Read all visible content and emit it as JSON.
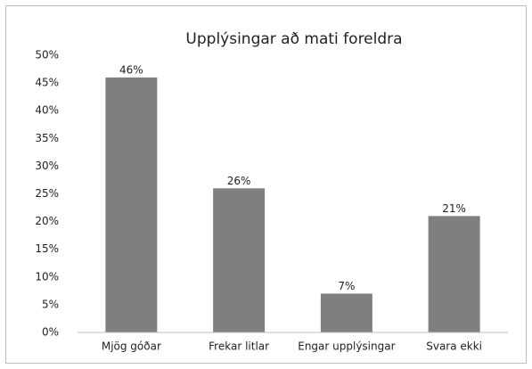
{
  "chart_data": {
    "type": "bar",
    "title": "Upplýsingar að mati foreldra",
    "categories": [
      "Mjög góðar",
      "Frekar litlar",
      "Engar upplýsingar",
      "Svara ekki"
    ],
    "values": [
      46,
      26,
      7,
      21
    ],
    "value_labels": [
      "46%",
      "26%",
      "7%",
      "21%"
    ],
    "color": "#7f7f7f",
    "ylim": [
      0,
      50
    ],
    "yticks": [
      {
        "value": 0,
        "label": "0%"
      },
      {
        "value": 5,
        "label": "5%"
      },
      {
        "value": 10,
        "label": "10%"
      },
      {
        "value": 15,
        "label": "15%"
      },
      {
        "value": 20,
        "label": "20%"
      },
      {
        "value": 25,
        "label": "25%"
      },
      {
        "value": 30,
        "label": "30%"
      },
      {
        "value": 35,
        "label": "35%"
      },
      {
        "value": 40,
        "label": "40%"
      },
      {
        "value": 45,
        "label": "45%"
      },
      {
        "value": 50,
        "label": "50%"
      }
    ],
    "grid": false
  }
}
